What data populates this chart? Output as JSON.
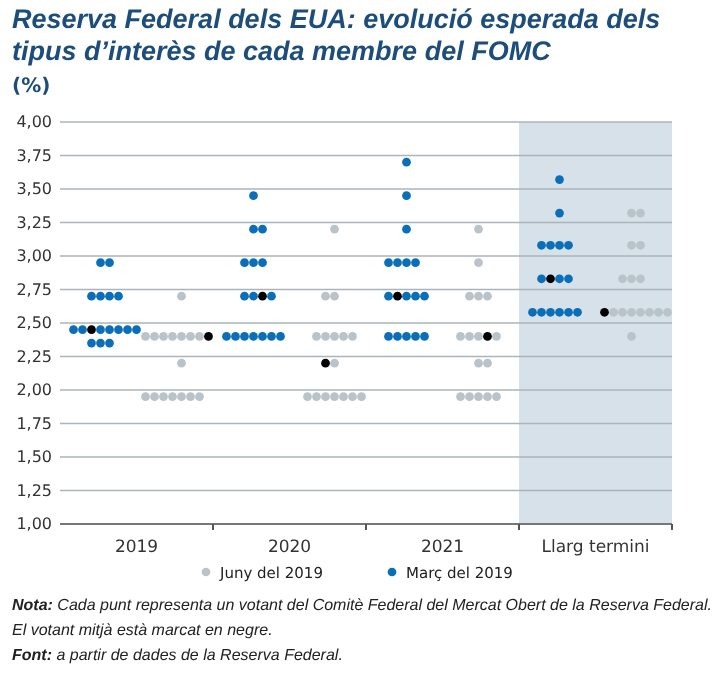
{
  "chart_data": {
    "type": "scatter",
    "title": "Reserva Federal dels EUA: evolució esperada dels tipus d’interès de cada membre del FOMC",
    "ylabel": "(%)",
    "categories": [
      null,
      null,
      null,
      null,
      null,
      null,
      null,
      null,
      "2019",
      null,
      null,
      null,
      null,
      null,
      null,
      null,
      null,
      null,
      null,
      null,
      null,
      null,
      null,
      null,
      null,
      "2020",
      null,
      null,
      null,
      null,
      null,
      null,
      null,
      null,
      null,
      null,
      null,
      null,
      null,
      null,
      null,
      null,
      "2021",
      null,
      null,
      null,
      null,
      null,
      null,
      null,
      null,
      null,
      null,
      null,
      null,
      null,
      null,
      null,
      null,
      "Llarg termini",
      null,
      null,
      null,
      null,
      null,
      null,
      null,
      null
    ],
    "ylim": [
      1,
      4
    ],
    "yticks": [
      {
        "value": 1,
        "label": "1,00"
      },
      {
        "value": 1.25,
        "label": "1,25"
      },
      {
        "value": 1.5,
        "label": "1,50"
      },
      {
        "value": 1.75,
        "label": "1,75"
      },
      {
        "value": 2,
        "label": "2,00"
      },
      {
        "value": 2.25,
        "label": "2,25"
      },
      {
        "value": 2.5,
        "label": "2,50"
      },
      {
        "value": 2.75,
        "label": "2,75"
      },
      {
        "value": 3,
        "label": "3,00"
      },
      {
        "value": 3.25,
        "label": "3,25"
      },
      {
        "value": 3.5,
        "label": "3,50"
      },
      {
        "value": 3.75,
        "label": "3,75"
      },
      {
        "value": 4,
        "label": "4,00"
      }
    ],
    "grid": "y",
    "legend": "bottom",
    "marker": "circle",
    "series": [
      {
        "name": "Juny del 2019",
        "color": "#b9c3c9",
        "values": [
          null,
          null,
          null,
          null,
          null,
          null,
          null,
          null,
          null,
          2.4,
          2.4,
          2.4,
          2.4,
          2.7,
          2.4,
          2.4,
          null,
          null,
          null,
          null,
          null,
          null,
          null,
          null,
          null,
          null,
          null,
          1.95,
          2.4,
          2.7,
          3.2,
          2.4,
          2.4,
          1.95,
          null,
          null,
          null,
          null,
          null,
          null,
          null,
          null,
          null,
          null,
          2.4,
          2.7,
          3.2,
          2.7,
          2.4,
          null,
          null,
          null,
          null,
          null,
          null,
          null,
          null,
          null,
          null,
          null,
          null,
          2.58,
          2.83,
          3.32,
          3.32,
          2.58,
          2.58,
          2.58
        ]
      },
      {
        "color": "#b9c3c9",
        "values": [
          null,
          null,
          null,
          null,
          null,
          null,
          null,
          null,
          null,
          1.95,
          1.95,
          1.95,
          1.95,
          2.4,
          1.95,
          1.95,
          null,
          null,
          null,
          null,
          null,
          null,
          null,
          null,
          null,
          null,
          null,
          null,
          1.95,
          2.4,
          2.7,
          1.95,
          1.95,
          null,
          null,
          null,
          null,
          null,
          null,
          null,
          null,
          null,
          null,
          null,
          1.95,
          2.4,
          2.95,
          null,
          1.95,
          null,
          null,
          null,
          null,
          null,
          null,
          null,
          null,
          null,
          null,
          null,
          null,
          null,
          2.58,
          3.08,
          3.08,
          null,
          null,
          null
        ]
      },
      {
        "color": "#b9c3c9",
        "values": [
          null,
          null,
          null,
          null,
          null,
          null,
          null,
          null,
          null,
          null,
          null,
          null,
          null,
          2.2,
          null,
          null,
          null,
          null,
          null,
          null,
          null,
          null,
          null,
          null,
          null,
          null,
          null,
          null,
          null,
          null,
          2.4,
          null,
          null,
          null,
          null,
          null,
          null,
          null,
          null,
          null,
          null,
          null,
          null,
          null,
          null,
          1.95,
          2.7,
          2.2,
          null,
          null,
          null,
          null,
          null,
          null,
          null,
          null,
          null,
          null,
          null,
          null,
          null,
          null,
          null,
          2.83,
          2.83,
          null,
          null,
          null
        ]
      },
      {
        "color": "#b9c3c9",
        "values": [
          null,
          null,
          null,
          null,
          null,
          null,
          null,
          null,
          null,
          null,
          null,
          null,
          null,
          1.95,
          null,
          null,
          null,
          null,
          null,
          null,
          null,
          null,
          null,
          null,
          null,
          null,
          null,
          null,
          null,
          1.95,
          2.2,
          null,
          null,
          null,
          null,
          null,
          null,
          null,
          null,
          null,
          null,
          null,
          null,
          null,
          null,
          null,
          2.4,
          1.95,
          null,
          null,
          null,
          null,
          null,
          null,
          null,
          null,
          null,
          null,
          null,
          null,
          null,
          null,
          null,
          2.58,
          2.58,
          null,
          null,
          null
        ]
      },
      {
        "color": "#b9c3c9",
        "values": [
          null,
          null,
          null,
          null,
          null,
          null,
          null,
          null,
          null,
          null,
          null,
          null,
          null,
          null,
          null,
          null,
          null,
          null,
          null,
          null,
          null,
          null,
          null,
          null,
          null,
          null,
          null,
          null,
          null,
          null,
          1.95,
          null,
          null,
          null,
          null,
          null,
          null,
          null,
          null,
          null,
          null,
          null,
          null,
          null,
          null,
          null,
          2.2,
          null,
          null,
          null,
          null,
          null,
          null,
          null,
          null,
          null,
          null,
          null,
          null,
          null,
          null,
          null,
          null,
          2.4,
          null,
          null,
          null,
          null
        ]
      },
      {
        "color": "#b9c3c9",
        "values": [
          null,
          null,
          null,
          null,
          null,
          null,
          null,
          null,
          null,
          null,
          null,
          null,
          null,
          null,
          null,
          null,
          null,
          null,
          null,
          null,
          null,
          null,
          null,
          null,
          null,
          null,
          null,
          null,
          null,
          null,
          null,
          null,
          null,
          null,
          null,
          null,
          null,
          null,
          null,
          null,
          null,
          null,
          null,
          null,
          null,
          null,
          1.95,
          null,
          null,
          null,
          null,
          null,
          null,
          null,
          null,
          null,
          null,
          null,
          null,
          null,
          null,
          null,
          null,
          null,
          null,
          null,
          null,
          null
        ]
      },
      {
        "name": "Març del 2019",
        "color": "#0a6fb8",
        "values": [
          null,
          2.45,
          2.45,
          2.7,
          2.95,
          2.95,
          2.7,
          2.45,
          2.45,
          null,
          null,
          null,
          null,
          null,
          null,
          null,
          null,
          null,
          2.4,
          2.4,
          2.95,
          3.45,
          3.2,
          2.7,
          2.4,
          null,
          null,
          null,
          null,
          null,
          null,
          null,
          null,
          null,
          null,
          null,
          2.95,
          2.95,
          3.7,
          2.95,
          2.7,
          null,
          null,
          null,
          null,
          null,
          null,
          null,
          null,
          null,
          null,
          null,
          2.58,
          3.08,
          3.08,
          3.57,
          3.08,
          2.58,
          null,
          null,
          null,
          null,
          null,
          null,
          null,
          null,
          null,
          null
        ]
      },
      {
        "color": "#0a6fb8",
        "values": [
          null,
          null,
          null,
          null,
          2.7,
          2.7,
          2.45,
          null,
          null,
          null,
          null,
          null,
          null,
          null,
          null,
          null,
          null,
          null,
          null,
          null,
          2.7,
          3.2,
          2.95,
          2.4,
          null,
          null,
          null,
          null,
          null,
          null,
          null,
          null,
          null,
          null,
          null,
          null,
          2.7,
          null,
          3.45,
          2.7,
          2.4,
          null,
          null,
          null,
          null,
          null,
          null,
          null,
          null,
          null,
          null,
          null,
          null,
          2.83,
          null,
          3.32,
          2.83,
          null,
          null,
          null,
          null,
          null,
          null,
          null,
          null,
          null,
          null,
          null
        ]
      },
      {
        "color": "#0a6fb8",
        "values": [
          null,
          null,
          null,
          2.35,
          2.45,
          2.45,
          null,
          null,
          null,
          null,
          null,
          null,
          null,
          null,
          null,
          null,
          null,
          null,
          null,
          null,
          2.4,
          2.95,
          null,
          null,
          null,
          null,
          null,
          null,
          null,
          null,
          null,
          null,
          null,
          null,
          null,
          null,
          2.4,
          2.4,
          3.2,
          2.4,
          null,
          null,
          null,
          null,
          null,
          null,
          null,
          null,
          null,
          null,
          null,
          null,
          null,
          2.58,
          2.58,
          3.08,
          2.58,
          null,
          null,
          null,
          null,
          null,
          null,
          null,
          null,
          null,
          null,
          null
        ]
      },
      {
        "color": "#0a6fb8",
        "values": [
          null,
          null,
          null,
          null,
          2.35,
          2.35,
          null,
          null,
          null,
          null,
          null,
          null,
          null,
          null,
          null,
          null,
          null,
          null,
          null,
          null,
          null,
          2.7,
          2.4,
          null,
          null,
          null,
          null,
          null,
          null,
          null,
          null,
          null,
          null,
          null,
          null,
          null,
          null,
          null,
          2.95,
          null,
          null,
          null,
          null,
          null,
          null,
          null,
          null,
          null,
          null,
          null,
          null,
          null,
          null,
          null,
          null,
          2.83,
          null,
          null,
          null,
          null,
          null,
          null,
          null,
          null,
          null,
          null,
          null,
          null
        ]
      },
      {
        "color": "#0a6fb8",
        "values": [
          null,
          null,
          null,
          null,
          null,
          null,
          null,
          null,
          null,
          null,
          null,
          null,
          null,
          null,
          null,
          null,
          null,
          null,
          null,
          null,
          null,
          2.4,
          null,
          null,
          null,
          null,
          null,
          null,
          null,
          null,
          null,
          null,
          null,
          null,
          null,
          null,
          null,
          null,
          2.7,
          null,
          null,
          null,
          null,
          null,
          null,
          null,
          null,
          null,
          null,
          null,
          null,
          null,
          null,
          null,
          null,
          2.58,
          null,
          null,
          null,
          null,
          null,
          null,
          null,
          null,
          null,
          null,
          null,
          null
        ]
      },
      {
        "color": "#0a6fb8",
        "values": [
          null,
          null,
          null,
          null,
          null,
          null,
          null,
          null,
          null,
          null,
          null,
          null,
          null,
          null,
          null,
          null,
          null,
          null,
          null,
          null,
          null,
          null,
          null,
          null,
          null,
          null,
          null,
          null,
          null,
          null,
          null,
          null,
          null,
          null,
          null,
          null,
          null,
          null,
          2.4,
          null,
          null,
          null,
          null,
          null,
          null,
          null,
          null,
          null,
          null,
          null,
          null,
          null,
          null,
          null,
          null,
          null,
          null,
          null,
          null,
          null,
          null,
          null,
          null,
          null,
          null,
          null,
          null,
          null
        ]
      },
      {
        "color": "#000000",
        "values": [
          null,
          null,
          null,
          2.45,
          null,
          null,
          null,
          null,
          null,
          null,
          null,
          null,
          null,
          null,
          null,
          null,
          2.4,
          null,
          null,
          null,
          null,
          null,
          2.7,
          null,
          null,
          null,
          null,
          null,
          null,
          2.2,
          null,
          null,
          null,
          null,
          null,
          null,
          null,
          2.7,
          null,
          null,
          null,
          null,
          null,
          null,
          null,
          null,
          null,
          2.4,
          null,
          null,
          null,
          null,
          null,
          null,
          2.83,
          null,
          null,
          null,
          null,
          null,
          2.58,
          null,
          null,
          null,
          null,
          null,
          null,
          null
        ]
      }
    ],
    "annotations": [
      "Nota: Cada punt representa un votant del Comitè Federal del Mercat Obert de la Reserva Federal.",
      "El votant mitjà està marcat en negre.",
      "Font: a partir de dades de la Reserva Federal."
    ]
  }
}
